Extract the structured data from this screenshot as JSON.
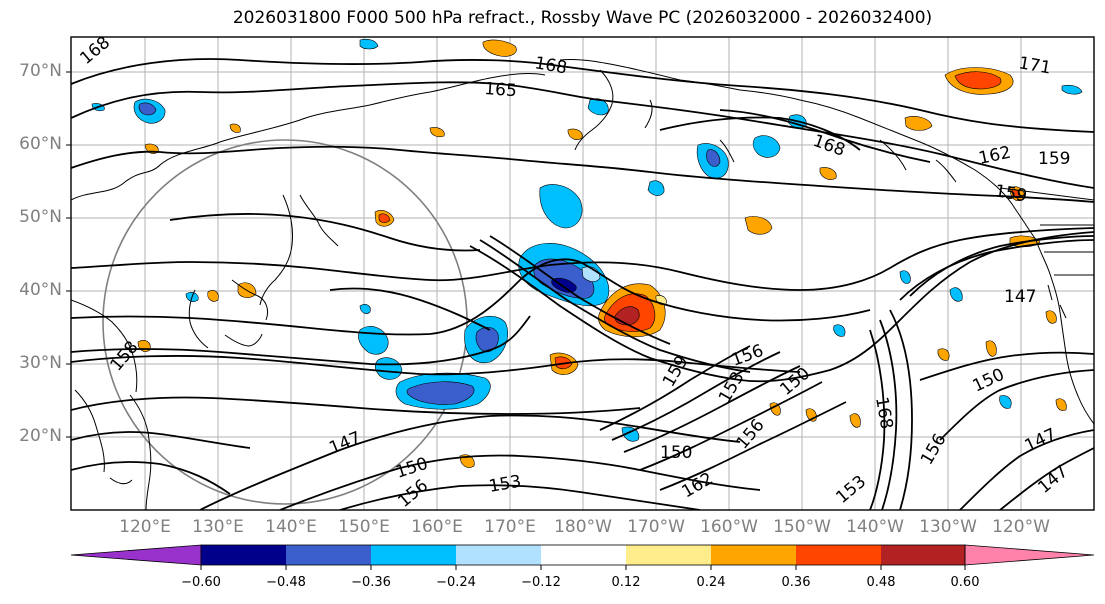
{
  "title": "2026031800 F000 500 hPa refract., Rossby Wave PC (2026032000 - 2026032400)",
  "lat_labels": [
    "70°N",
    "60°N",
    "50°N",
    "40°N",
    "30°N",
    "20°N"
  ],
  "lon_labels": [
    "120°E",
    "130°E",
    "140°E",
    "150°E",
    "160°E",
    "170°E",
    "180°W",
    "170°W",
    "160°W",
    "150°W",
    "140°W",
    "130°W",
    "120°W"
  ],
  "colorbar": {
    "tick_labels": [
      "−0.60",
      "−0.48",
      "−0.36",
      "−0.24",
      "−0.12",
      "0.12",
      "0.24",
      "0.36",
      "0.48",
      "0.60"
    ],
    "colors": [
      "#9932cc",
      "#00008b",
      "#3a5fcd",
      "#00bfff",
      "#b0e2ff",
      "#ffffff",
      "#ffec8b",
      "#ffa500",
      "#ff4500",
      "#b22222",
      "#ff82ab"
    ]
  },
  "contour_labels": [
    "168",
    "168",
    "165",
    "171",
    "162",
    "159",
    "168",
    "159",
    "158",
    "147",
    "159",
    "156",
    "153",
    "150",
    "147",
    "150",
    "156",
    "153",
    "150",
    "156",
    "147",
    "147",
    "150",
    "153",
    "162",
    "156",
    "168"
  ],
  "shading_colors": {
    "neg_light": "#b0e2ff",
    "neg_mid": "#00bfff",
    "neg_strong": "#3a5fcd",
    "neg_max": "#00008b",
    "pos_light": "#ffec8b",
    "pos_mid": "#ffa500",
    "pos_strong": "#ff4500",
    "pos_max": "#b22222"
  }
}
